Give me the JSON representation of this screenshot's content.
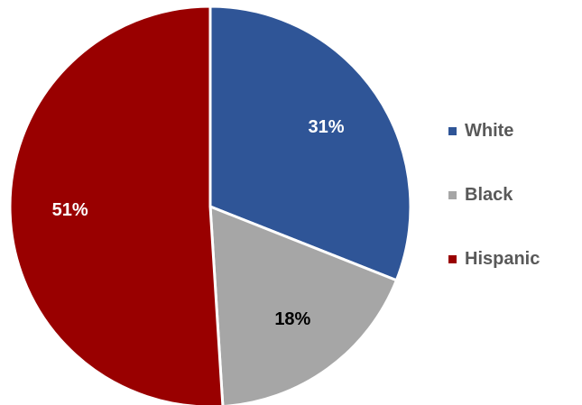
{
  "chart_data": {
    "type": "pie",
    "title": "",
    "categories": [
      "White",
      "Black",
      "Hispanic"
    ],
    "values": [
      31,
      18,
      51
    ],
    "labels": [
      "31%",
      "18%",
      "51%"
    ],
    "colors": [
      "#2F5597",
      "#A6A6A6",
      "#990000"
    ],
    "label_colors": [
      "#ffffff",
      "#000000",
      "#ffffff"
    ],
    "legend_position": "right"
  }
}
